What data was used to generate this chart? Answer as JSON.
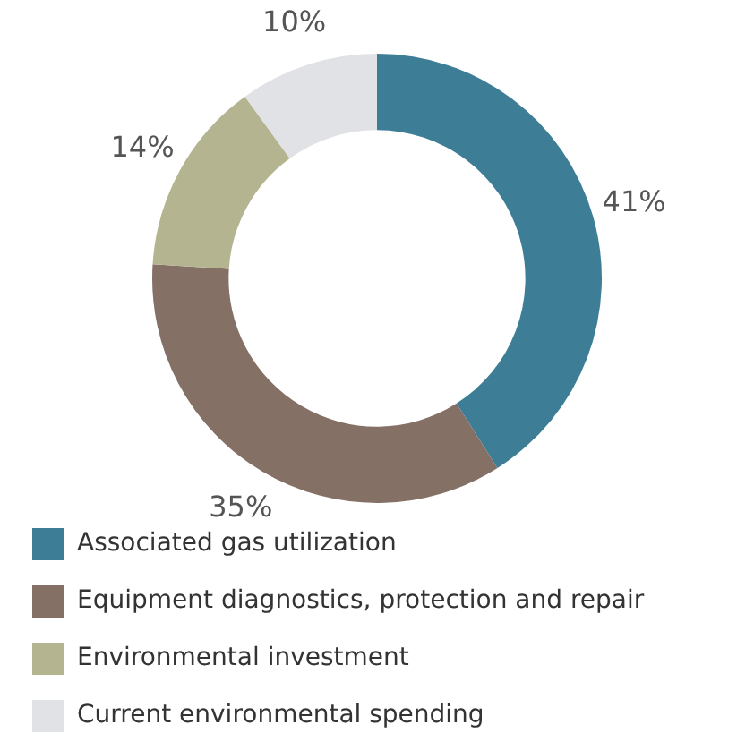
{
  "chart_data": {
    "type": "donut",
    "categories": [
      "Associated gas utilization",
      "Equipment diagnostics, protection and repair",
      "Environmental investment",
      "Current environmental spending"
    ],
    "values": [
      41,
      35,
      14,
      10
    ],
    "colors": [
      "#3d7d96",
      "#857066",
      "#b5b491",
      "#e1e2e5"
    ],
    "value_labels": [
      "41%",
      "35%",
      "14%",
      "10%"
    ],
    "legend": "bottom"
  }
}
